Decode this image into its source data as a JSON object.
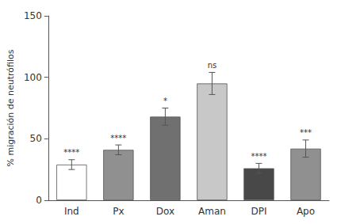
{
  "chart_data": {
    "type": "bar",
    "categories": [
      "Ind",
      "Px",
      "Dox",
      "Aman",
      "DPI",
      "Apo"
    ],
    "values": [
      29,
      41,
      68,
      95,
      26,
      42
    ],
    "errors": [
      4,
      4,
      7,
      9,
      4,
      7
    ],
    "colors": [
      "#ffffff",
      "#909090",
      "#707070",
      "#c8c8c8",
      "#484848",
      "#909090"
    ],
    "annotations": [
      "****",
      "****",
      "*",
      "ns",
      "****",
      "***"
    ],
    "ylabel": "% migración de neutrófilos",
    "ylim": [
      0,
      150
    ],
    "yticks": [
      0,
      50,
      100,
      150
    ],
    "grid": false
  }
}
